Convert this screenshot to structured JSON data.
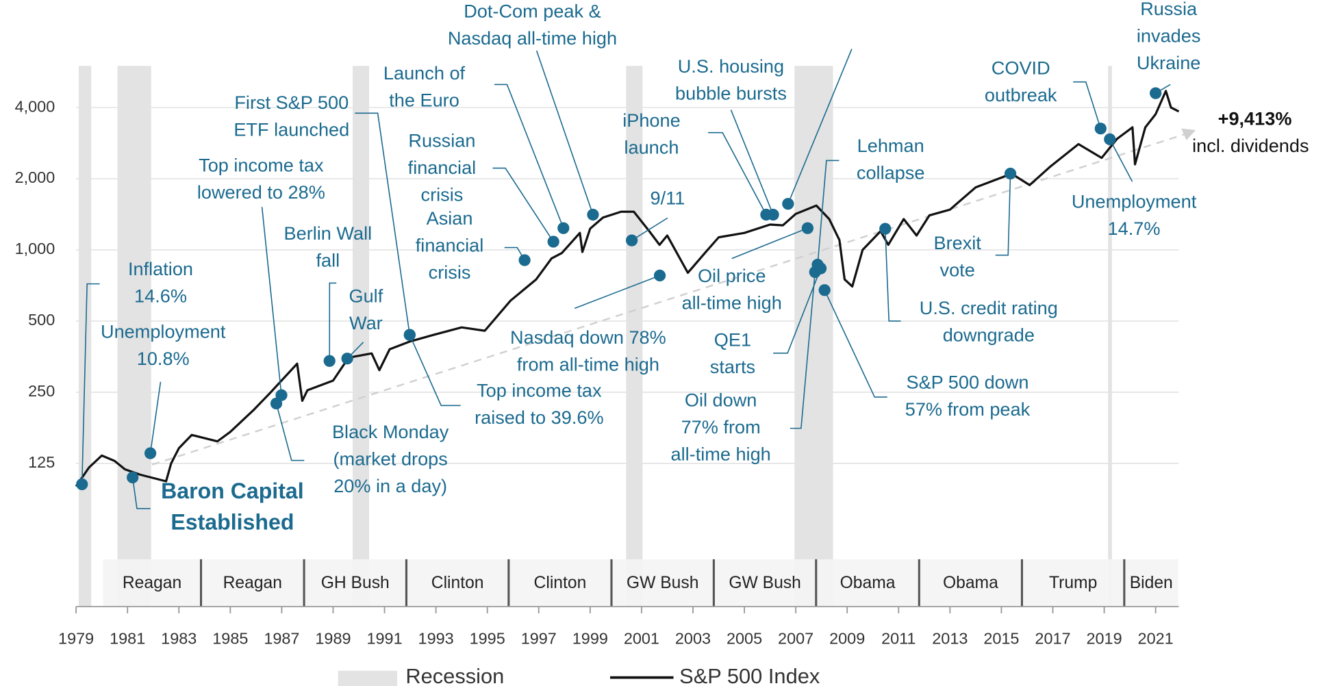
{
  "chart_data": {
    "type": "line",
    "x": [
      1979.0,
      1979.5,
      1980.0,
      1980.5,
      1980.9,
      1981.5,
      1982.5,
      1982.7,
      1983.0,
      1983.5,
      1984.5,
      1985.0,
      1985.9,
      1986.5,
      1987.6,
      1987.8,
      1988.0,
      1989.0,
      1989.6,
      1990.5,
      1990.8,
      1991.2,
      1992.0,
      1993.0,
      1994.0,
      1994.9,
      1995.9,
      1996.9,
      1997.5,
      1997.9,
      1998.6,
      1998.7,
      1999.0,
      1999.5,
      2000.2,
      2000.7,
      2001.3,
      2001.7,
      2002.0,
      2002.8,
      2003.5,
      2004.0,
      2005.0,
      2006.0,
      2006.5,
      2007.0,
      2007.8,
      2008.3,
      2008.7,
      2008.9,
      2009.2,
      2009.6,
      2010.3,
      2010.6,
      2011.2,
      2011.7,
      2012.2,
      2013.0,
      2014.0,
      2015.4,
      2016.1,
      2016.9,
      2018.0,
      2018.9,
      2019.5,
      2020.1,
      2020.2,
      2020.6,
      2021.0,
      2021.4,
      2021.6,
      2021.9
    ],
    "series": [
      {
        "name": "S&P 500 Index",
        "color": "#111111",
        "values": [
          100,
          120,
          135,
          128,
          118,
          112,
          105,
          125,
          145,
          165,
          155,
          170,
          210,
          245,
          330,
          230,
          255,
          280,
          350,
          365,
          310,
          380,
          410,
          440,
          470,
          455,
          610,
          750,
          920,
          970,
          1180,
          980,
          1230,
          1370,
          1450,
          1450,
          1200,
          1050,
          1150,
          800,
          980,
          1130,
          1180,
          1280,
          1270,
          1420,
          1540,
          1350,
          1100,
          750,
          700,
          1000,
          1200,
          1050,
          1350,
          1150,
          1400,
          1480,
          1840,
          2100,
          1880,
          2250,
          2800,
          2450,
          2950,
          3300,
          2300,
          3300,
          3750,
          4700,
          4000,
          3850
        ]
      }
    ],
    "xlim": [
      1979,
      2022
    ],
    "xticks": [
      1979,
      1981,
      1983,
      1985,
      1987,
      1989,
      1991,
      1993,
      1995,
      1997,
      1999,
      2001,
      2003,
      2005,
      2007,
      2009,
      2011,
      2013,
      2015,
      2017,
      2019,
      2021
    ],
    "ylim": [
      31,
      6000
    ],
    "yticks": [
      125,
      250,
      500,
      {
        "value": 1000,
        "label": "1,000"
      },
      {
        "value": 2000,
        "label": "2,000"
      },
      {
        "value": 4000,
        "label": "4,000"
      }
    ],
    "log_y": true,
    "grid": true,
    "recessions": {
      "name": "Recession",
      "color": "#e3e3e3",
      "spans": [
        [
          1979.1,
          1979.59
        ],
        [
          1980.61,
          1981.92
        ],
        [
          1989.76,
          1990.4
        ],
        [
          2000.4,
          2001.04
        ],
        [
          2006.95,
          2008.45
        ],
        [
          2019.15,
          2019.3
        ]
      ]
    },
    "presidents": {
      "names": [
        "Reagan",
        "Reagan",
        "GH Bush",
        "Clinton",
        "Clinton",
        "GW Bush",
        "GW Bush",
        "Obama",
        "Obama",
        "Trump",
        "Biden"
      ],
      "starts": [
        1980.05,
        1983.86,
        1987.87,
        1991.85,
        1995.83,
        1999.83,
        2003.81,
        2007.79,
        2011.8,
        2015.8,
        2019.78
      ],
      "end": 2021.88
    },
    "annotation_color": "#1b6a8f",
    "annotations": [
      {
        "lines": [
          "Inflation",
          "14.6%"
        ],
        "x": 1979.23,
        "y": 102
      },
      {
        "lines": [
          "Unemployment",
          "10.8%"
        ],
        "x": 1981.89,
        "y": 138
      },
      {
        "lines": [
          "Baron Capital",
          "Established"
        ],
        "x": 1981.2,
        "y": 109
      },
      {
        "lines": [
          "Top income tax",
          "lowered to 28%"
        ],
        "x": 1986.99,
        "y": 243
      },
      {
        "lines": [
          "First S&P 500",
          "ETF launched"
        ],
        "x": 1991.98,
        "y": 437
      },
      {
        "lines": [
          "Black Monday",
          "(market drops",
          "20% in a day)"
        ],
        "x": 1986.79,
        "y": 224
      },
      {
        "lines": [
          "Berlin Wall",
          "fall"
        ],
        "x": 1988.86,
        "y": 339
      },
      {
        "lines": [
          "Gulf",
          "War"
        ],
        "x": 1989.55,
        "y": 347
      },
      {
        "lines": [
          "Top income tax",
          "raised to 39.6%"
        ],
        "x": 1991.98,
        "y": 437
      },
      {
        "lines": [
          "Launch of",
          "the Euro"
        ],
        "x": 1997.96,
        "y": 1236
      },
      {
        "lines": [
          "Dot-Com peak &",
          "Nasdaq all-time high"
        ],
        "x": 1999.11,
        "y": 1409
      },
      {
        "lines": [
          "Russian",
          "financial",
          "crisis"
        ],
        "x": 1997.57,
        "y": 1083
      },
      {
        "lines": [
          "Asian",
          "financial",
          "crisis"
        ],
        "x": 1996.45,
        "y": 905
      },
      {
        "lines": [
          "9/11"
        ],
        "x": 2000.62,
        "y": 1097
      },
      {
        "lines": [
          "Nasdaq down 78%",
          "from all-time high"
        ],
        "x": 2001.71,
        "y": 779
      },
      {
        "lines": [
          "iPhone",
          "launch"
        ],
        "x": 2005.85,
        "y": 1409
      },
      {
        "lines": [
          "U.S. housing",
          "bubble bursts"
        ],
        "x": 2006.12,
        "y": 1409
      },
      {
        "x": 2006.7,
        "y": 1566
      },
      {
        "lines": [
          "Oil price",
          "all-time high"
        ],
        "x": 2007.46,
        "y": 1236
      },
      {
        "lines": [
          "Lehman",
          "collapse"
        ],
        "x": 2007.85,
        "y": 866
      },
      {
        "lines": [
          "QE1",
          "starts"
        ],
        "x": 2007.97,
        "y": 835
      },
      {
        "lines": [
          "Oil down",
          "77% from",
          "all-time high"
        ],
        "x": 2007.75,
        "y": 806
      },
      {
        "lines": [
          "S&P 500 down",
          "57% from peak"
        ],
        "x": 2008.12,
        "y": 676
      },
      {
        "lines": [
          "U.S. credit rating",
          "downgrade"
        ],
        "x": 2010.48,
        "y": 1228
      },
      {
        "lines": [
          "Brexit",
          "vote"
        ],
        "x": 2015.35,
        "y": 2102
      },
      {
        "lines": [
          "COVID",
          "outbreak"
        ],
        "x": 2018.86,
        "y": 3259
      },
      {
        "lines": [
          "Unemployment",
          "14.7%"
        ],
        "x": 2019.22,
        "y": 2936
      },
      {
        "lines": [
          "Russia",
          "invades",
          "Ukraine"
        ],
        "x": 2021.0,
        "y": 4600
      }
    ],
    "total_return": {
      "lines": [
        "+9,413%",
        "incl. dividends"
      ]
    }
  }
}
